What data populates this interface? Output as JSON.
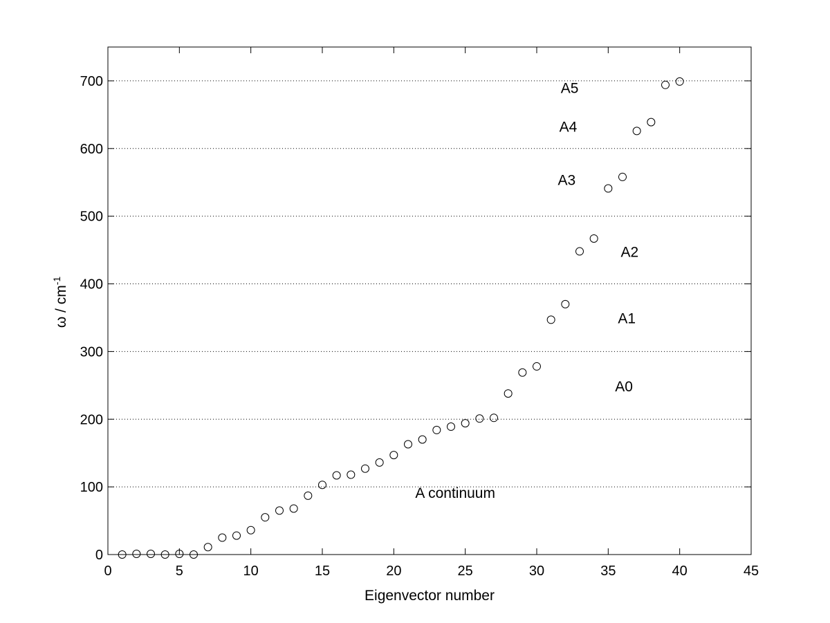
{
  "chart_data": {
    "type": "scatter",
    "title": "",
    "xlabel": "Eigenvector number",
    "ylabel": "ω / cm",
    "ylabel_superscript": "-1",
    "xlim": [
      0,
      45
    ],
    "ylim": [
      0,
      750
    ],
    "xticks": [
      0,
      5,
      10,
      15,
      20,
      25,
      30,
      35,
      40,
      45
    ],
    "yticks": [
      0,
      100,
      200,
      300,
      400,
      500,
      600,
      700
    ],
    "grid": "y-dotted",
    "marker": "open-circle",
    "series": [
      {
        "x": [
          1,
          2,
          3,
          4,
          5,
          6,
          7,
          8,
          9,
          10,
          11,
          12,
          13,
          14,
          15,
          16,
          17,
          18,
          19,
          20,
          21,
          22,
          23,
          24,
          25,
          26,
          27,
          28,
          29,
          30,
          31,
          32,
          33,
          34,
          35,
          36,
          37,
          38,
          39,
          40
        ],
        "y": [
          0,
          1,
          1,
          0,
          1,
          0,
          11,
          25,
          28,
          36,
          55,
          65,
          68,
          87,
          103,
          117,
          118,
          127,
          136,
          147,
          163,
          170,
          184,
          189,
          194,
          201,
          202,
          238,
          269,
          278,
          347,
          370,
          448,
          467,
          541,
          558,
          626,
          639,
          694,
          699
        ]
      }
    ],
    "annotations": [
      {
        "text": "A5",
        "x": 32.3,
        "y": 682
      },
      {
        "text": "A4",
        "x": 32.2,
        "y": 625
      },
      {
        "text": "A3",
        "x": 32.1,
        "y": 546
      },
      {
        "text": "A2",
        "x": 36.5,
        "y": 440
      },
      {
        "text": "A1",
        "x": 36.3,
        "y": 342
      },
      {
        "text": "A0",
        "x": 36.1,
        "y": 241
      },
      {
        "text": "A continuum",
        "x": 24.3,
        "y": 84
      }
    ]
  }
}
